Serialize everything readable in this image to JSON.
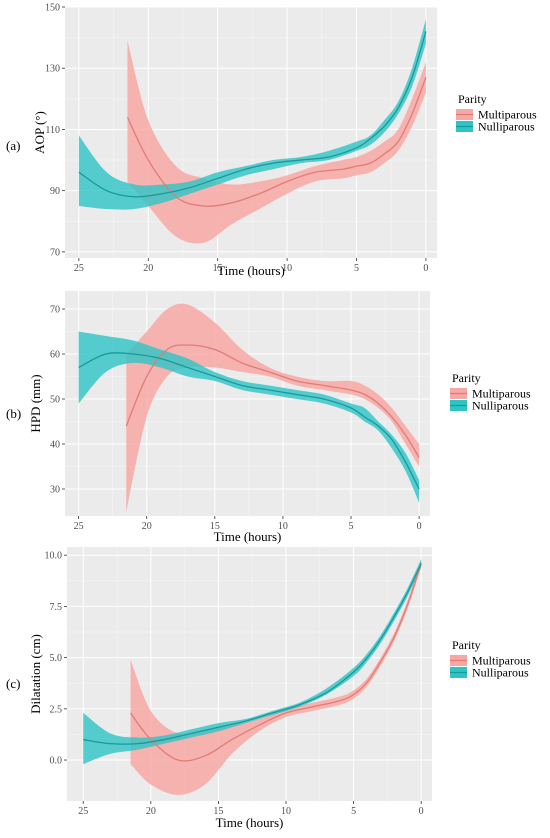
{
  "colors": {
    "multiparous_band": "#f8a8a4",
    "multiparous_line": "#e07c76",
    "nulliparous_band": "#2ec4c6",
    "nulliparous_line": "#169a9c"
  },
  "chart_data": [
    {
      "type": "line",
      "panel_label": "(a)",
      "xlabel": "Time (hours)",
      "ylabel": "AOP (°)",
      "xlim": [
        26,
        -0.8
      ],
      "x_reversed": true,
      "ylim": [
        68,
        150
      ],
      "xticks": [
        25,
        20,
        15,
        10,
        5,
        0
      ],
      "yticks": [
        70,
        90,
        110,
        130,
        150
      ],
      "grid": true,
      "legend": {
        "title": "Parity",
        "position": "right",
        "entries": [
          "Multiparous",
          "Nulliparous"
        ]
      },
      "series": [
        {
          "name": "Multiparous",
          "x": [
            21.5,
            20,
            18,
            16,
            14,
            12,
            10,
            8,
            6,
            5,
            4,
            3,
            2,
            1,
            0
          ],
          "y": [
            114,
            100,
            88,
            85,
            86,
            89,
            93,
            96,
            97,
            98,
            99,
            102,
            106,
            115,
            127
          ],
          "lower": [
            93,
            85,
            75,
            73,
            79,
            84,
            89,
            93,
            94,
            95,
            96,
            99,
            103,
            111,
            122
          ],
          "upper": [
            139,
            113,
            98,
            94,
            92,
            93,
            95,
            98,
            100,
            101,
            103,
            106,
            110,
            120,
            132
          ]
        },
        {
          "name": "Nulliparous",
          "x": [
            25,
            23,
            21,
            19,
            17,
            15,
            13,
            11,
            9,
            7,
            5,
            4,
            3,
            2,
            1,
            0
          ],
          "y": [
            96,
            90,
            88,
            89,
            91,
            94,
            97,
            99,
            100,
            101,
            104,
            107,
            111,
            117,
            127,
            142
          ],
          "lower": [
            85,
            84,
            84,
            86,
            89,
            92,
            95,
            97,
            99,
            100,
            103,
            105,
            109,
            115,
            124,
            138
          ],
          "upper": [
            108,
            96,
            92,
            92,
            93,
            96,
            98,
            100,
            101,
            103,
            106,
            108,
            113,
            119,
            130,
            146
          ]
        }
      ]
    },
    {
      "type": "line",
      "panel_label": "(b)",
      "xlabel": "Time (hours)",
      "ylabel": "HPD (mm)",
      "xlim": [
        26,
        -0.8
      ],
      "x_reversed": true,
      "ylim": [
        24,
        74
      ],
      "xticks": [
        25,
        20,
        15,
        10,
        5,
        0
      ],
      "yticks": [
        30,
        40,
        50,
        60,
        70
      ],
      "grid": true,
      "legend": {
        "title": "Parity",
        "position": "right",
        "entries": [
          "Multiparous",
          "Nulliparous"
        ]
      },
      "series": [
        {
          "name": "Multiparous",
          "x": [
            21.5,
            20,
            18.5,
            17,
            15,
            13,
            11,
            9,
            7,
            5,
            4,
            3,
            2,
            1,
            0
          ],
          "y": [
            44,
            55,
            61,
            62,
            61,
            58,
            56,
            54,
            53,
            52,
            51,
            49,
            46,
            42,
            37
          ],
          "lower": [
            25,
            46,
            55,
            57,
            57,
            56,
            55,
            53,
            52,
            51,
            50,
            48,
            45,
            40,
            35
          ],
          "upper": [
            60,
            65,
            70,
            71,
            67,
            61,
            57,
            55,
            54,
            54,
            53,
            51,
            48,
            44,
            40
          ]
        },
        {
          "name": "Nulliparous",
          "x": [
            25,
            23,
            21,
            19,
            17,
            15,
            13,
            11,
            9,
            7,
            5,
            4,
            3,
            2,
            1,
            0
          ],
          "y": [
            57,
            60,
            60,
            59,
            57,
            55,
            53,
            52,
            51,
            50,
            48,
            46,
            44,
            41,
            36,
            30
          ],
          "lower": [
            49,
            56,
            58,
            57,
            55,
            54,
            52,
            51,
            50,
            49,
            47,
            45,
            43,
            39,
            34,
            27
          ],
          "upper": [
            65,
            64,
            63,
            61,
            59,
            56,
            54,
            53,
            52,
            51,
            49,
            48,
            45,
            42,
            38,
            32
          ]
        }
      ]
    },
    {
      "type": "line",
      "panel_label": "(c)",
      "xlabel": "Time (hours)",
      "ylabel": "Dilatation (cm)",
      "xlim": [
        26.2,
        -0.8
      ],
      "x_reversed": true,
      "ylim": [
        -2.0,
        10.4
      ],
      "xticks": [
        25,
        20,
        15,
        10,
        5,
        0
      ],
      "yticks": [
        0.0,
        2.5,
        5.0,
        7.5,
        10.0
      ],
      "ytick_labels": [
        "0.0",
        "2.5",
        "5.0",
        "7.5",
        "10.0"
      ],
      "grid": true,
      "legend": {
        "title": "Parity",
        "position": "right",
        "entries": [
          "Multiparous",
          "Nulliparous"
        ]
      },
      "series": [
        {
          "name": "Multiparous",
          "x": [
            21.5,
            20,
            18,
            16,
            14,
            12,
            10,
            8,
            6,
            5,
            4,
            3,
            2,
            1,
            0
          ],
          "y": [
            2.3,
            1.0,
            0.0,
            0.2,
            1.0,
            1.7,
            2.3,
            2.6,
            2.9,
            3.2,
            3.8,
            4.8,
            6.0,
            7.6,
            9.6
          ],
          "lower": [
            -0.2,
            -1.2,
            -1.7,
            -1.2,
            0.3,
            1.4,
            2.1,
            2.4,
            2.7,
            3.0,
            3.6,
            4.6,
            5.8,
            7.4,
            9.4
          ],
          "upper": [
            4.9,
            2.4,
            1.3,
            1.5,
            1.7,
            2.0,
            2.5,
            2.8,
            3.1,
            3.4,
            4.0,
            5.0,
            6.2,
            7.8,
            9.8
          ]
        },
        {
          "name": "Nulliparous",
          "x": [
            25,
            23,
            21,
            19,
            17,
            15,
            13,
            11,
            9,
            7,
            5,
            4,
            3,
            2,
            1,
            0
          ],
          "y": [
            1.0,
            0.8,
            0.8,
            1.0,
            1.3,
            1.6,
            1.9,
            2.3,
            2.7,
            3.3,
            4.3,
            5.0,
            5.9,
            7.0,
            8.2,
            9.6
          ],
          "lower": [
            -0.2,
            0.3,
            0.5,
            0.8,
            1.1,
            1.4,
            1.8,
            2.2,
            2.6,
            3.2,
            4.1,
            4.8,
            5.7,
            6.8,
            8.0,
            9.4
          ],
          "upper": [
            2.3,
            1.3,
            1.1,
            1.2,
            1.5,
            1.8,
            2.0,
            2.4,
            2.8,
            3.5,
            4.5,
            5.2,
            6.1,
            7.2,
            8.4,
            9.8
          ]
        }
      ]
    }
  ]
}
